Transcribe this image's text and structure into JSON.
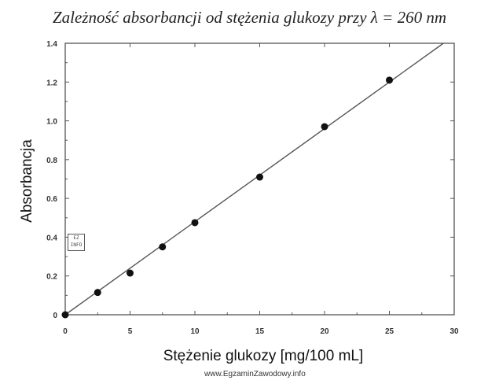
{
  "chart_data": {
    "type": "scatter",
    "title": "Zależność absorbancji od stężenia glukozy przy λ = 260 nm",
    "xlabel": "Stężenie glukozy [mg/100 mL]",
    "ylabel": "Absorbancja",
    "xlim": [
      0,
      30
    ],
    "ylim": [
      0,
      1.4
    ],
    "xticks": [
      "0",
      "5",
      "10",
      "15",
      "20",
      "25",
      "30"
    ],
    "yticks": [
      "0",
      "0.2",
      "0.4",
      "0.6",
      "0.8",
      "1.0",
      "1.2",
      "1.4"
    ],
    "grid": false,
    "points": [
      {
        "x": 0,
        "y": 0
      },
      {
        "x": 2.5,
        "y": 0.115
      },
      {
        "x": 5,
        "y": 0.215
      },
      {
        "x": 7.5,
        "y": 0.35
      },
      {
        "x": 10,
        "y": 0.475
      },
      {
        "x": 15,
        "y": 0.71
      },
      {
        "x": 20,
        "y": 0.97
      },
      {
        "x": 25,
        "y": 1.21
      }
    ],
    "fit_line": {
      "slope": 0.048,
      "intercept": 0
    }
  },
  "watermark": "www.EgzaminZawodowy.info",
  "logo_text": "EZ INFO"
}
